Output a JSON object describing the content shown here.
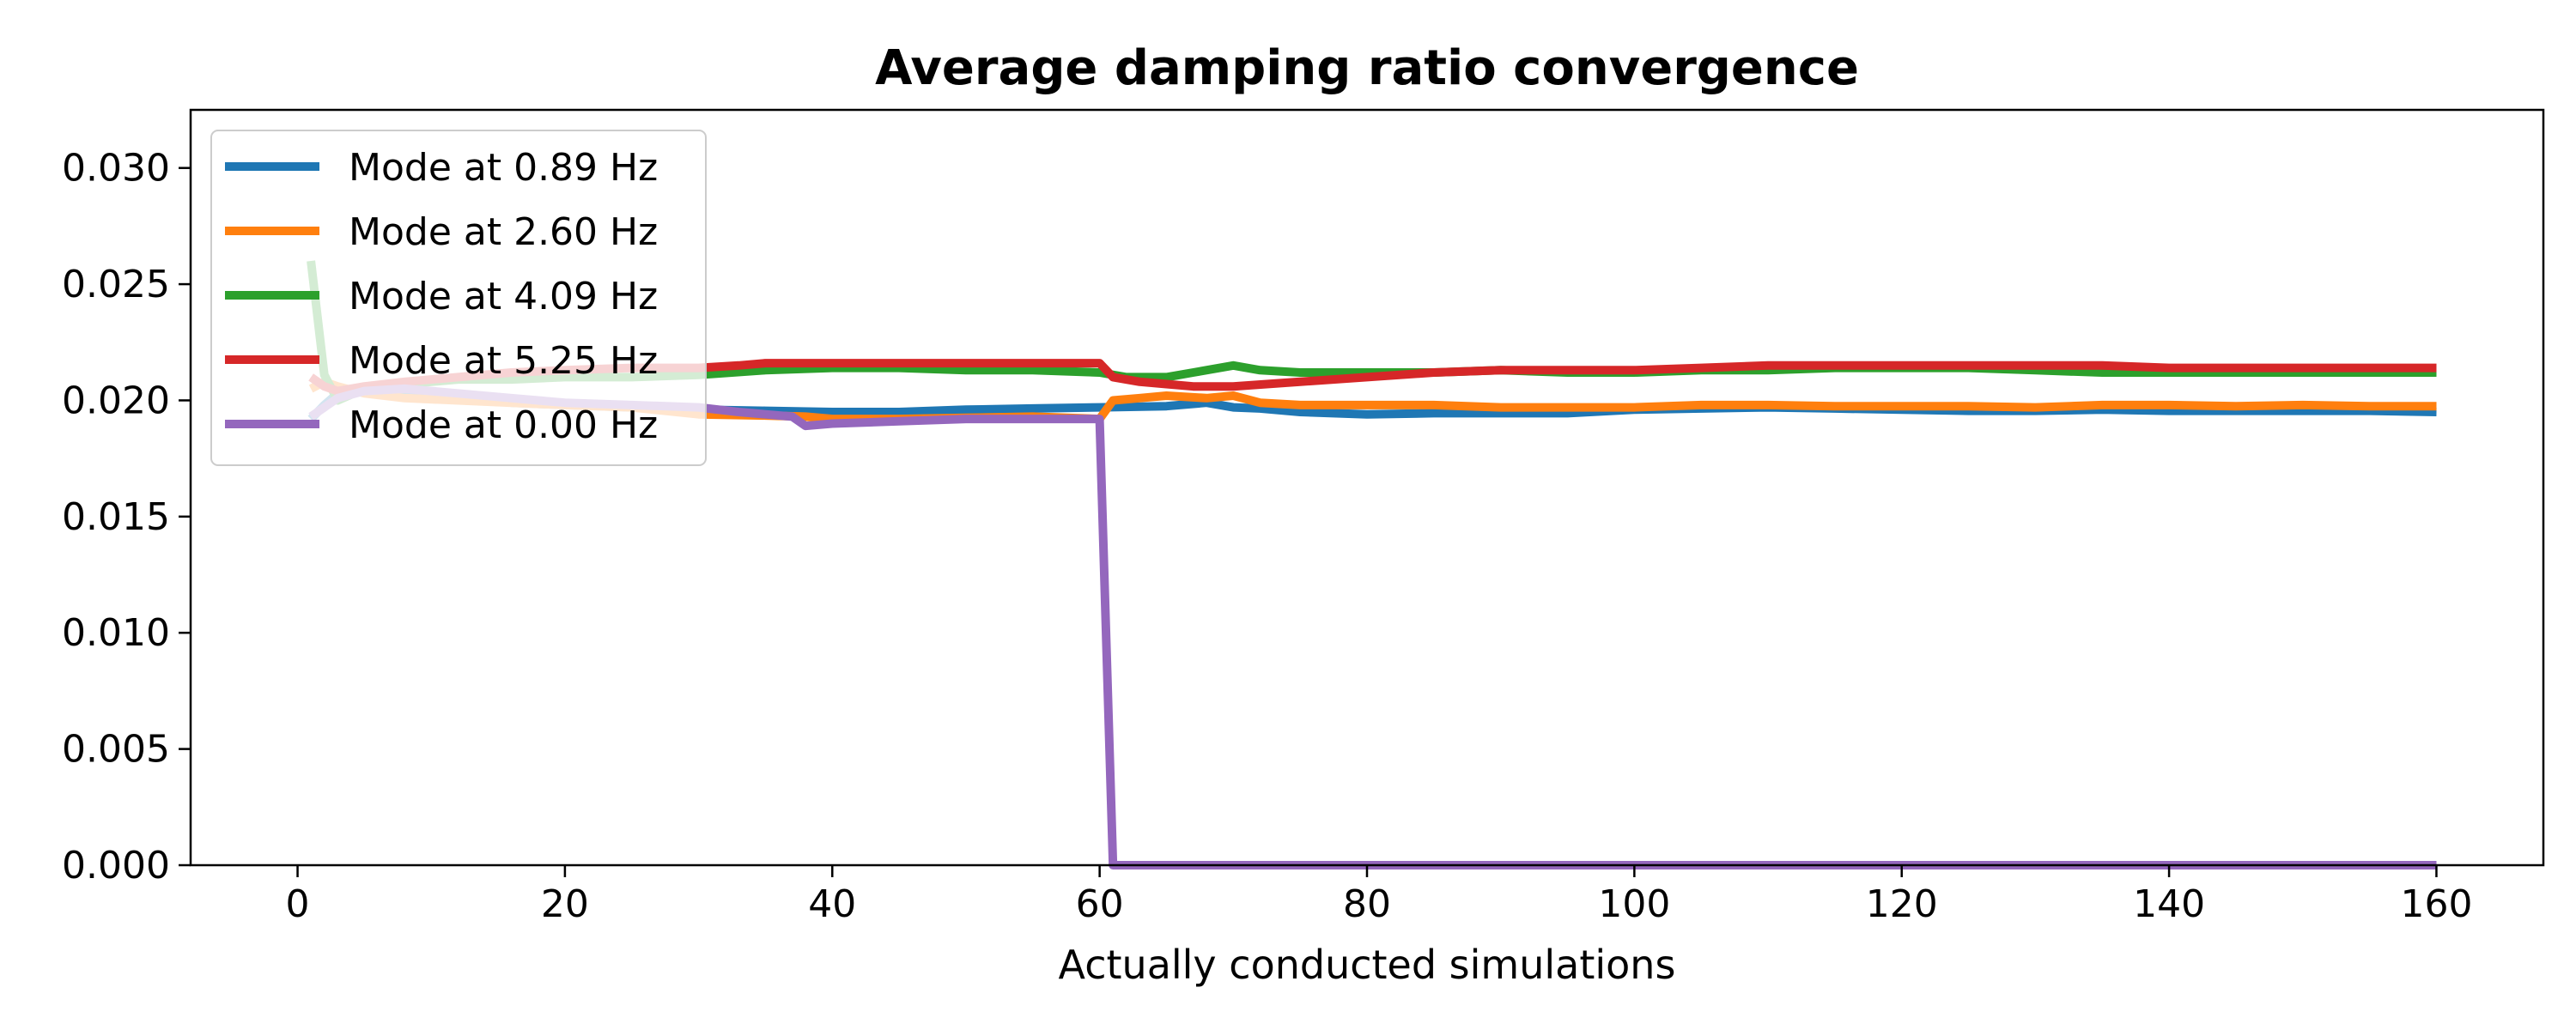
{
  "chart_data": {
    "type": "line",
    "title": "Average damping ratio convergence",
    "xlabel": "Actually conducted simulations",
    "ylabel": "",
    "xlim": [
      -8,
      168
    ],
    "ylim": [
      0,
      0.0325
    ],
    "xticks": [
      0,
      20,
      40,
      60,
      80,
      100,
      120,
      140,
      160
    ],
    "xtick_labels": [
      "0",
      "20",
      "40",
      "60",
      "80",
      "100",
      "120",
      "140",
      "160"
    ],
    "yticks": [
      0,
      0.005,
      0.01,
      0.015,
      0.02,
      0.025,
      0.03
    ],
    "ytick_labels": [
      "0.000",
      "0.005",
      "0.010",
      "0.015",
      "0.020",
      "0.025",
      "0.030"
    ],
    "grid": false,
    "legend_position": "top-left",
    "series": [
      {
        "name": "Mode at 0.89 Hz",
        "color": "#1f77b4",
        "points": [
          [
            1,
            0.0192
          ],
          [
            2,
            0.0198
          ],
          [
            3,
            0.0203
          ],
          [
            5,
            0.0205
          ],
          [
            8,
            0.0203
          ],
          [
            12,
            0.0201
          ],
          [
            16,
            0.0199
          ],
          [
            20,
            0.0198
          ],
          [
            25,
            0.0197
          ],
          [
            30,
            0.0196
          ],
          [
            35,
            0.01955
          ],
          [
            40,
            0.0195
          ],
          [
            45,
            0.0195
          ],
          [
            50,
            0.0196
          ],
          [
            55,
            0.01965
          ],
          [
            60,
            0.0197
          ],
          [
            65,
            0.01975
          ],
          [
            68,
            0.0199
          ],
          [
            70,
            0.0197
          ],
          [
            72,
            0.01965
          ],
          [
            75,
            0.0195
          ],
          [
            80,
            0.0194
          ],
          [
            85,
            0.01945
          ],
          [
            90,
            0.01945
          ],
          [
            95,
            0.01945
          ],
          [
            100,
            0.0196
          ],
          [
            105,
            0.01965
          ],
          [
            110,
            0.0197
          ],
          [
            115,
            0.01965
          ],
          [
            120,
            0.0196
          ],
          [
            125,
            0.01955
          ],
          [
            130,
            0.01955
          ],
          [
            135,
            0.0196
          ],
          [
            140,
            0.01955
          ],
          [
            145,
            0.01955
          ],
          [
            150,
            0.01955
          ],
          [
            155,
            0.01955
          ],
          [
            160,
            0.0195
          ]
        ]
      },
      {
        "name": "Mode at 2.60 Hz",
        "color": "#ff7f0e",
        "points": [
          [
            1,
            0.0205
          ],
          [
            2,
            0.0208
          ],
          [
            3,
            0.0206
          ],
          [
            5,
            0.0203
          ],
          [
            8,
            0.0201
          ],
          [
            12,
            0.02
          ],
          [
            16,
            0.0199
          ],
          [
            20,
            0.0198
          ],
          [
            25,
            0.0197
          ],
          [
            30,
            0.0194
          ],
          [
            35,
            0.01935
          ],
          [
            38,
            0.0193
          ],
          [
            40,
            0.0192
          ],
          [
            45,
            0.0192
          ],
          [
            50,
            0.01925
          ],
          [
            55,
            0.0193
          ],
          [
            60,
            0.0192
          ],
          [
            61,
            0.02
          ],
          [
            63,
            0.0201
          ],
          [
            65,
            0.0202
          ],
          [
            68,
            0.0201
          ],
          [
            70,
            0.0202
          ],
          [
            72,
            0.0199
          ],
          [
            75,
            0.0198
          ],
          [
            80,
            0.0198
          ],
          [
            85,
            0.0198
          ],
          [
            90,
            0.0197
          ],
          [
            95,
            0.0197
          ],
          [
            100,
            0.0197
          ],
          [
            105,
            0.0198
          ],
          [
            110,
            0.0198
          ],
          [
            115,
            0.01975
          ],
          [
            120,
            0.01975
          ],
          [
            125,
            0.01975
          ],
          [
            130,
            0.0197
          ],
          [
            135,
            0.0198
          ],
          [
            140,
            0.0198
          ],
          [
            145,
            0.01975
          ],
          [
            150,
            0.0198
          ],
          [
            155,
            0.01975
          ],
          [
            160,
            0.01975
          ]
        ]
      },
      {
        "name": "Mode at 4.09 Hz",
        "color": "#2ca02c",
        "points": [
          [
            1,
            0.026
          ],
          [
            2,
            0.0211
          ],
          [
            3,
            0.02
          ],
          [
            5,
            0.0205
          ],
          [
            8,
            0.0207
          ],
          [
            12,
            0.0209
          ],
          [
            16,
            0.0209
          ],
          [
            20,
            0.021
          ],
          [
            25,
            0.021
          ],
          [
            30,
            0.0211
          ],
          [
            35,
            0.0213
          ],
          [
            40,
            0.0214
          ],
          [
            45,
            0.0214
          ],
          [
            50,
            0.0213
          ],
          [
            55,
            0.0213
          ],
          [
            60,
            0.0212
          ],
          [
            62,
            0.021
          ],
          [
            65,
            0.021
          ],
          [
            67,
            0.0212
          ],
          [
            70,
            0.0215
          ],
          [
            72,
            0.0213
          ],
          [
            75,
            0.0212
          ],
          [
            80,
            0.0212
          ],
          [
            85,
            0.0212
          ],
          [
            90,
            0.0213
          ],
          [
            95,
            0.0212
          ],
          [
            100,
            0.0212
          ],
          [
            105,
            0.0213
          ],
          [
            110,
            0.0213
          ],
          [
            115,
            0.0214
          ],
          [
            120,
            0.0214
          ],
          [
            125,
            0.0214
          ],
          [
            130,
            0.0213
          ],
          [
            135,
            0.0212
          ],
          [
            140,
            0.0212
          ],
          [
            145,
            0.0212
          ],
          [
            150,
            0.0212
          ],
          [
            155,
            0.0212
          ],
          [
            160,
            0.0212
          ]
        ]
      },
      {
        "name": "Mode at 5.25 Hz",
        "color": "#d62728",
        "points": [
          [
            1,
            0.021
          ],
          [
            2,
            0.0206
          ],
          [
            3,
            0.0204
          ],
          [
            5,
            0.0206
          ],
          [
            8,
            0.0208
          ],
          [
            12,
            0.021
          ],
          [
            16,
            0.0212
          ],
          [
            20,
            0.0213
          ],
          [
            25,
            0.0214
          ],
          [
            30,
            0.0214
          ],
          [
            33,
            0.0215
          ],
          [
            35,
            0.0216
          ],
          [
            40,
            0.0216
          ],
          [
            45,
            0.0216
          ],
          [
            50,
            0.0216
          ],
          [
            55,
            0.0216
          ],
          [
            60,
            0.0216
          ],
          [
            61,
            0.021
          ],
          [
            63,
            0.0208
          ],
          [
            65,
            0.0207
          ],
          [
            67,
            0.0206
          ],
          [
            70,
            0.0206
          ],
          [
            75,
            0.0208
          ],
          [
            80,
            0.021
          ],
          [
            85,
            0.0212
          ],
          [
            90,
            0.0213
          ],
          [
            95,
            0.0213
          ],
          [
            100,
            0.0213
          ],
          [
            105,
            0.0214
          ],
          [
            110,
            0.0215
          ],
          [
            115,
            0.0215
          ],
          [
            120,
            0.0215
          ],
          [
            125,
            0.0215
          ],
          [
            130,
            0.0215
          ],
          [
            135,
            0.0215
          ],
          [
            140,
            0.0214
          ],
          [
            145,
            0.0214
          ],
          [
            150,
            0.0214
          ],
          [
            155,
            0.0214
          ],
          [
            160,
            0.0214
          ]
        ]
      },
      {
        "name": "Mode at 0.00 Hz",
        "color": "#9467bd",
        "points": [
          [
            1,
            0.0193
          ],
          [
            2,
            0.0197
          ],
          [
            3,
            0.0201
          ],
          [
            5,
            0.0204
          ],
          [
            8,
            0.0205
          ],
          [
            12,
            0.0203
          ],
          [
            16,
            0.0201
          ],
          [
            20,
            0.0199
          ],
          [
            25,
            0.0198
          ],
          [
            30,
            0.0197
          ],
          [
            33,
            0.0195
          ],
          [
            35,
            0.0194
          ],
          [
            37,
            0.0193
          ],
          [
            38,
            0.0189
          ],
          [
            40,
            0.019
          ],
          [
            45,
            0.0191
          ],
          [
            50,
            0.0192
          ],
          [
            55,
            0.0192
          ],
          [
            60,
            0.0192
          ],
          [
            61,
            0.0
          ],
          [
            70,
            0.0
          ],
          [
            80,
            0.0
          ],
          [
            100,
            0.0
          ],
          [
            120,
            0.0
          ],
          [
            140,
            0.0
          ],
          [
            160,
            0.0
          ]
        ]
      }
    ]
  }
}
